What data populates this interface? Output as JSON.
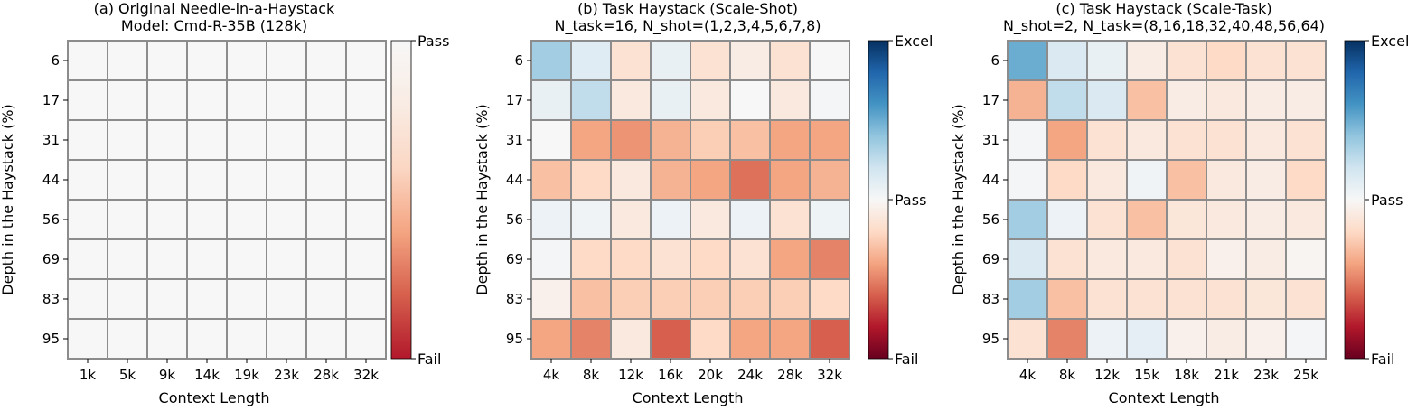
{
  "chart_data": [
    {
      "type": "heatmap",
      "title_line1": "(a) Original Needle-in-a-Haystack",
      "title_line2": "Model: Cmd-R-35B (128k)",
      "xlabel": "Context Length",
      "ylabel": "Depth in the Haystack (%)",
      "x_categories": [
        "1k",
        "5k",
        "9k",
        "14k",
        "19k",
        "23k",
        "28k",
        "32k"
      ],
      "y_categories": [
        "6",
        "17",
        "31",
        "44",
        "56",
        "69",
        "83",
        "95"
      ],
      "colorbar": {
        "top": "Pass",
        "bottom": "Fail"
      },
      "scale": "pass-fail",
      "values": [
        [
          0,
          0,
          0,
          0,
          0,
          0,
          0,
          0
        ],
        [
          0,
          0,
          0,
          0,
          0,
          0,
          0,
          0
        ],
        [
          0,
          0,
          0,
          0,
          0,
          0,
          0,
          0
        ],
        [
          0,
          0,
          0,
          0,
          0,
          0,
          0,
          0
        ],
        [
          0,
          0,
          0,
          0,
          0,
          0,
          0,
          0
        ],
        [
          0,
          0,
          0,
          0,
          0,
          0,
          0,
          0
        ],
        [
          0,
          0,
          0,
          0,
          0,
          0,
          0,
          0
        ],
        [
          0,
          0,
          0,
          0,
          0,
          0,
          0,
          0
        ]
      ]
    },
    {
      "type": "heatmap",
      "title_line1": "(b) Task Haystack (Scale-Shot)",
      "title_line2": "N_task=16, N_shot=(1,2,3,4,5,6,7,8)",
      "xlabel": "Context Length",
      "ylabel": "Depth in the Haystack (%)",
      "x_categories": [
        "4k",
        "8k",
        "12k",
        "16k",
        "20k",
        "24k",
        "28k",
        "32k"
      ],
      "y_categories": [
        "6",
        "17",
        "31",
        "44",
        "56",
        "69",
        "83",
        "95"
      ],
      "colorbar": {
        "top": "Excel",
        "middle": "Pass",
        "bottom": "Fail"
      },
      "scale": "diverging",
      "values": [
        [
          0.35,
          0.12,
          -0.15,
          0.08,
          -0.15,
          -0.08,
          -0.15,
          0.0
        ],
        [
          0.08,
          0.25,
          -0.1,
          0.08,
          -0.1,
          0.0,
          -0.1,
          0.02
        ],
        [
          0.0,
          -0.4,
          -0.45,
          -0.35,
          -0.25,
          -0.3,
          -0.4,
          -0.4
        ],
        [
          -0.3,
          -0.2,
          -0.1,
          -0.35,
          -0.4,
          -0.55,
          -0.4,
          -0.35
        ],
        [
          0.06,
          0.04,
          -0.1,
          0.06,
          -0.1,
          0.06,
          -0.15,
          0.05
        ],
        [
          0.02,
          -0.2,
          -0.2,
          -0.15,
          -0.2,
          -0.15,
          -0.4,
          -0.5
        ],
        [
          -0.05,
          -0.3,
          -0.25,
          -0.25,
          -0.25,
          -0.25,
          -0.25,
          -0.2
        ],
        [
          -0.4,
          -0.5,
          -0.1,
          -0.6,
          -0.2,
          -0.4,
          -0.4,
          -0.6
        ]
      ]
    },
    {
      "type": "heatmap",
      "title_line1": "(c) Task Haystack (Scale-Task)",
      "title_line2": "N_shot=2, N_task=(8,16,18,32,40,48,56,64)",
      "xlabel": "Context Length",
      "ylabel": "Depth in the Haystack (%)",
      "x_categories": [
        "4k",
        "8k",
        "12k",
        "15k",
        "18k",
        "21k",
        "23k",
        "25k"
      ],
      "y_categories": [
        "6",
        "17",
        "31",
        "44",
        "56",
        "69",
        "83",
        "95"
      ],
      "colorbar": {
        "top": "Excel",
        "middle": "Pass",
        "bottom": "Fail"
      },
      "scale": "diverging",
      "values": [
        [
          0.5,
          0.15,
          0.08,
          -0.08,
          -0.15,
          -0.2,
          -0.15,
          -0.15
        ],
        [
          -0.35,
          0.25,
          0.15,
          -0.3,
          -0.08,
          -0.1,
          -0.08,
          -0.08
        ],
        [
          0.02,
          -0.4,
          -0.15,
          -0.1,
          -0.15,
          -0.15,
          -0.1,
          -0.15
        ],
        [
          0.02,
          -0.2,
          -0.1,
          0.04,
          -0.3,
          -0.1,
          -0.08,
          -0.2
        ],
        [
          0.35,
          0.06,
          -0.15,
          -0.3,
          -0.12,
          -0.1,
          -0.08,
          -0.1
        ],
        [
          0.15,
          -0.15,
          -0.1,
          -0.1,
          -0.15,
          -0.05,
          -0.08,
          -0.02
        ],
        [
          0.35,
          -0.3,
          -0.15,
          -0.15,
          -0.15,
          -0.15,
          -0.12,
          -0.15
        ],
        [
          -0.15,
          -0.5,
          0.06,
          0.1,
          -0.05,
          -0.08,
          -0.05,
          0.02
        ]
      ]
    }
  ]
}
